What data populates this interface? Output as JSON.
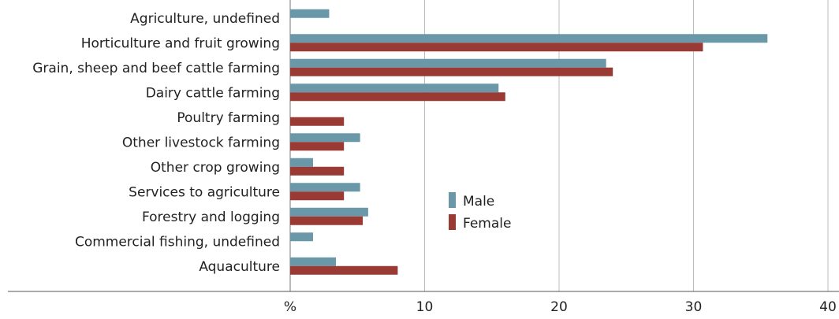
{
  "chart_data": {
    "type": "bar",
    "orientation": "horizontal",
    "categories": [
      "Agriculture, undefined",
      "Horticulture and fruit growing",
      "Grain, sheep and beef cattle farming",
      "Dairy cattle farming",
      "Poultry farming",
      "Other livestock farming",
      "Other crop growing",
      "Services to agriculture",
      "Forestry and logging",
      "Commercial fishing, undefined",
      "Aquaculture"
    ],
    "series": [
      {
        "name": "Male",
        "color": "#6b98a8",
        "values": [
          2.9,
          35.5,
          23.5,
          15.5,
          0.0,
          5.2,
          1.7,
          5.2,
          5.8,
          1.7,
          3.4
        ]
      },
      {
        "name": "Female",
        "color": "#9a3a34",
        "values": [
          0.0,
          30.7,
          24.0,
          16.0,
          4.0,
          4.0,
          4.0,
          4.0,
          5.4,
          0.0,
          8.0
        ]
      }
    ],
    "xlim": [
      0,
      40
    ],
    "x_ticks": [
      "%",
      "10",
      "20",
      "30",
      "40"
    ],
    "x_tick_values": [
      0,
      10,
      20,
      30,
      40
    ],
    "grid": true,
    "legend_position": "center"
  }
}
